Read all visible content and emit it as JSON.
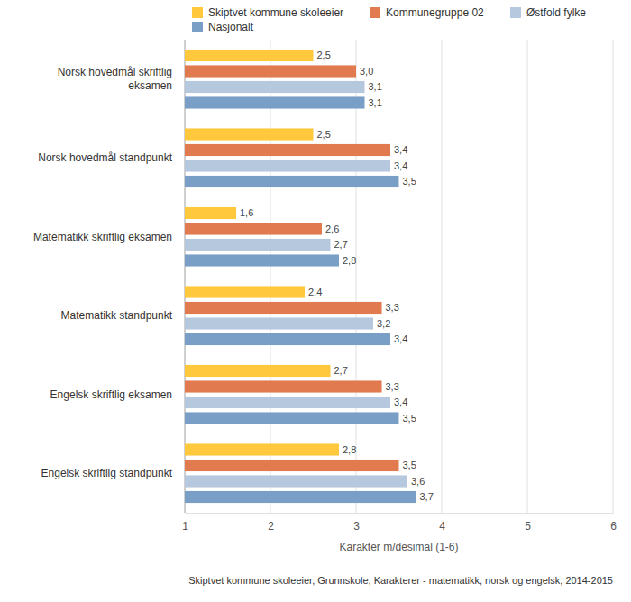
{
  "chart_data": {
    "type": "bar",
    "orientation": "horizontal",
    "categories": [
      "Norsk hovedmål skriftlig eksamen",
      "Norsk hovedmål standpunkt",
      "Matematikk skriftlig eksamen",
      "Matematikk standpunkt",
      "Engelsk skriftlig eksamen",
      "Engelsk skriftlig standpunkt"
    ],
    "series": [
      {
        "name": "Skiptvet kommune skoleeier",
        "color": "#ffc83d",
        "values": [
          2.5,
          2.5,
          1.6,
          2.4,
          2.7,
          2.8
        ],
        "value_labels": [
          "2,5",
          "2,5",
          "1,6",
          "2,4",
          "2,7",
          "2,8"
        ]
      },
      {
        "name": "Kommunegruppe 02",
        "color": "#e17b4f",
        "values": [
          3.0,
          3.4,
          2.6,
          3.3,
          3.3,
          3.5
        ],
        "value_labels": [
          "3,0",
          "3,4",
          "2,6",
          "3,3",
          "3,3",
          "3,5"
        ]
      },
      {
        "name": "Østfold fylke",
        "color": "#b5c8de",
        "values": [
          3.1,
          3.4,
          2.7,
          3.2,
          3.4,
          3.6
        ],
        "value_labels": [
          "3,1",
          "3,4",
          "2,7",
          "3,2",
          "3,4",
          "3,6"
        ]
      },
      {
        "name": "Nasjonalt",
        "color": "#7a9fc7",
        "values": [
          3.1,
          3.5,
          2.8,
          3.4,
          3.5,
          3.7
        ],
        "value_labels": [
          "3,1",
          "3,5",
          "2,8",
          "3,4",
          "3,5",
          "3,7"
        ]
      }
    ],
    "x_label": "Karakter m/desimal (1-6)",
    "xlim": [
      1,
      6
    ],
    "xticks": [
      1,
      2,
      3,
      4,
      5,
      6
    ],
    "grid": true,
    "legend": "top",
    "data_labels": true,
    "annotations": [
      "Skiptvet kommune skoleeier, Grunnskole, Karakterer - matematikk, norsk og engelsk, 2014-2015"
    ]
  }
}
